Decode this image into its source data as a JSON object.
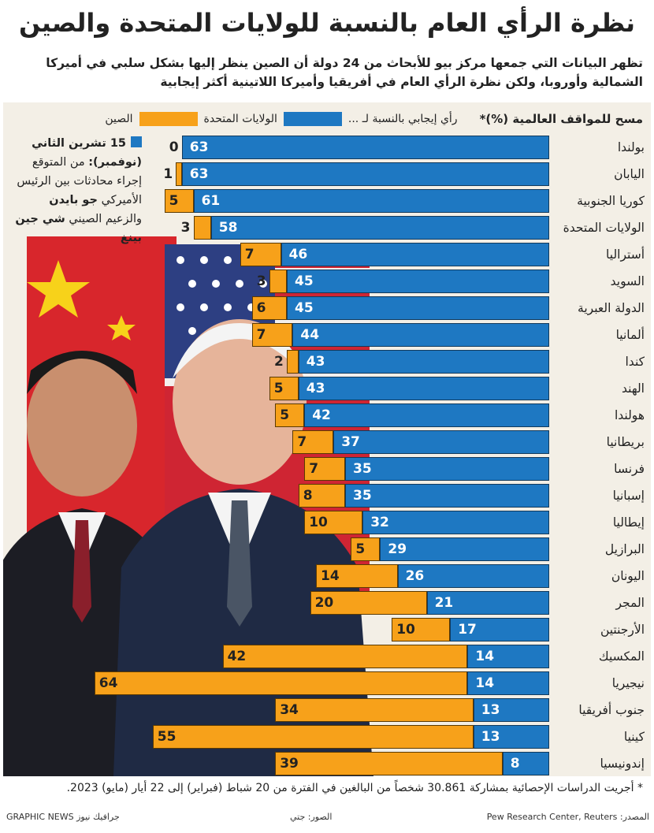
{
  "title": "نظرة الرأي العام بالنسبة للولايات المتحدة والصين",
  "subtitle": "تظهر البيانات التي جمعها مركز بيو للأبحاث من 24 دولة أن الصين ينظر إليها بشكل سلبي في أميركا الشمالية وأوروبا، ولكن نظرة الرأي العام في أفريقيا وأميركا اللاتينية أكثر إيجابية",
  "legend": {
    "survey": "مسح للمواقف العالمية (%)*",
    "favorable": "رأي إيجابي بالنسبة لـ ...",
    "us": "الولايات المتحدة",
    "china": "الصين"
  },
  "note": {
    "date": "15 تشرين الثاني",
    "month": "(نوفمبر):",
    "text1": "من المتوقع إجراء محادثات بين الرئيس الأميركي",
    "name1": "جو بايدن",
    "text2": "والزعيم الصيني",
    "name2": "شي جين بينغ"
  },
  "colors": {
    "us": "#1e78c2",
    "china": "#f7a11a",
    "background": "#f3efe6"
  },
  "chart_data": {
    "type": "bar",
    "orientation": "horizontal",
    "stacked": true,
    "title": "",
    "xlabel": "",
    "ylabel": "",
    "xlim": [
      0,
      100
    ],
    "legend_position": "top",
    "categories": [
      "بولندا",
      "اليابان",
      "كوريا الجنوبية",
      "الولايات المتحدة",
      "أستراليا",
      "السويد",
      "الدولة العبرية",
      "ألمانيا",
      "كندا",
      "الهند",
      "هولندا",
      "بريطانيا",
      "فرنسا",
      "إسبانيا",
      "إيطاليا",
      "البرازيل",
      "اليونان",
      "المجر",
      "الأرجنتين",
      "المكسيك",
      "نيجيريا",
      "جنوب أفريقيا",
      "كينيا",
      "إندونيسيا"
    ],
    "series": [
      {
        "name": "الولايات المتحدة",
        "values": [
          63,
          63,
          61,
          58,
          46,
          45,
          45,
          44,
          43,
          43,
          42,
          37,
          35,
          35,
          32,
          29,
          26,
          21,
          17,
          14,
          14,
          13,
          13,
          8
        ]
      },
      {
        "name": "الصين",
        "values": [
          0,
          1,
          5,
          3,
          7,
          3,
          6,
          7,
          2,
          5,
          5,
          7,
          7,
          8,
          10,
          5,
          14,
          20,
          10,
          42,
          64,
          34,
          55,
          39
        ]
      }
    ]
  },
  "footnote": "* أجريت الدراسات الإحصائية بمشاركة 30.861 شخصاً من البالغين في الفترة من 20 شباط (فبراير) إلى 22 أيار (مايو) 2023.",
  "credits": {
    "source": "المصدر: Pew Research Center, Reuters",
    "pictures": "الصور: جتي",
    "brand": "GRAPHIC NEWS جرافيك نيوز"
  }
}
